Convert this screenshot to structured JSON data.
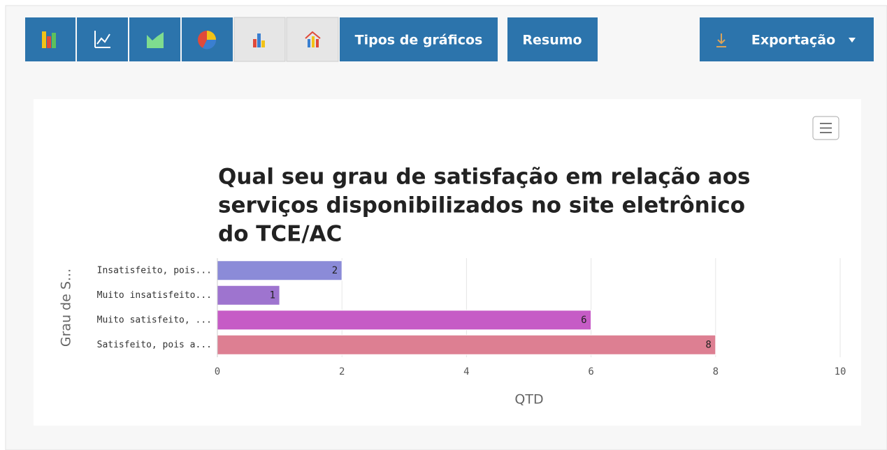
{
  "toolbar": {
    "buttons": [
      "Tipos de gráficos",
      "Resumo",
      "Exportação"
    ]
  },
  "chart_data": {
    "type": "hbar",
    "title": "Qual seu grau de satisfação em relação aos serviços disponibilizados no site eletrônico do TCE/AC",
    "title_lines": [
      "Qual seu grau de satisfação em relação aos",
      "serviços disponibilizados no site eletrônico",
      "do TCE/AC"
    ],
    "categories": [
      "Insatisfeito, pois...",
      "Muito insatisfeito...",
      "Muito satisfeito, ...",
      "Satisfeito, pois a..."
    ],
    "values": [
      2,
      1,
      6,
      8
    ],
    "colors": [
      "#8b8bd8",
      "#9e74cf",
      "#c65cc6",
      "#dd7f92"
    ],
    "xlim": [
      0,
      10
    ],
    "xticks": [
      0,
      2,
      4,
      6,
      8,
      10
    ],
    "xlabel": "QTD",
    "ylabel": "Grau de S...",
    "grid": true
  }
}
